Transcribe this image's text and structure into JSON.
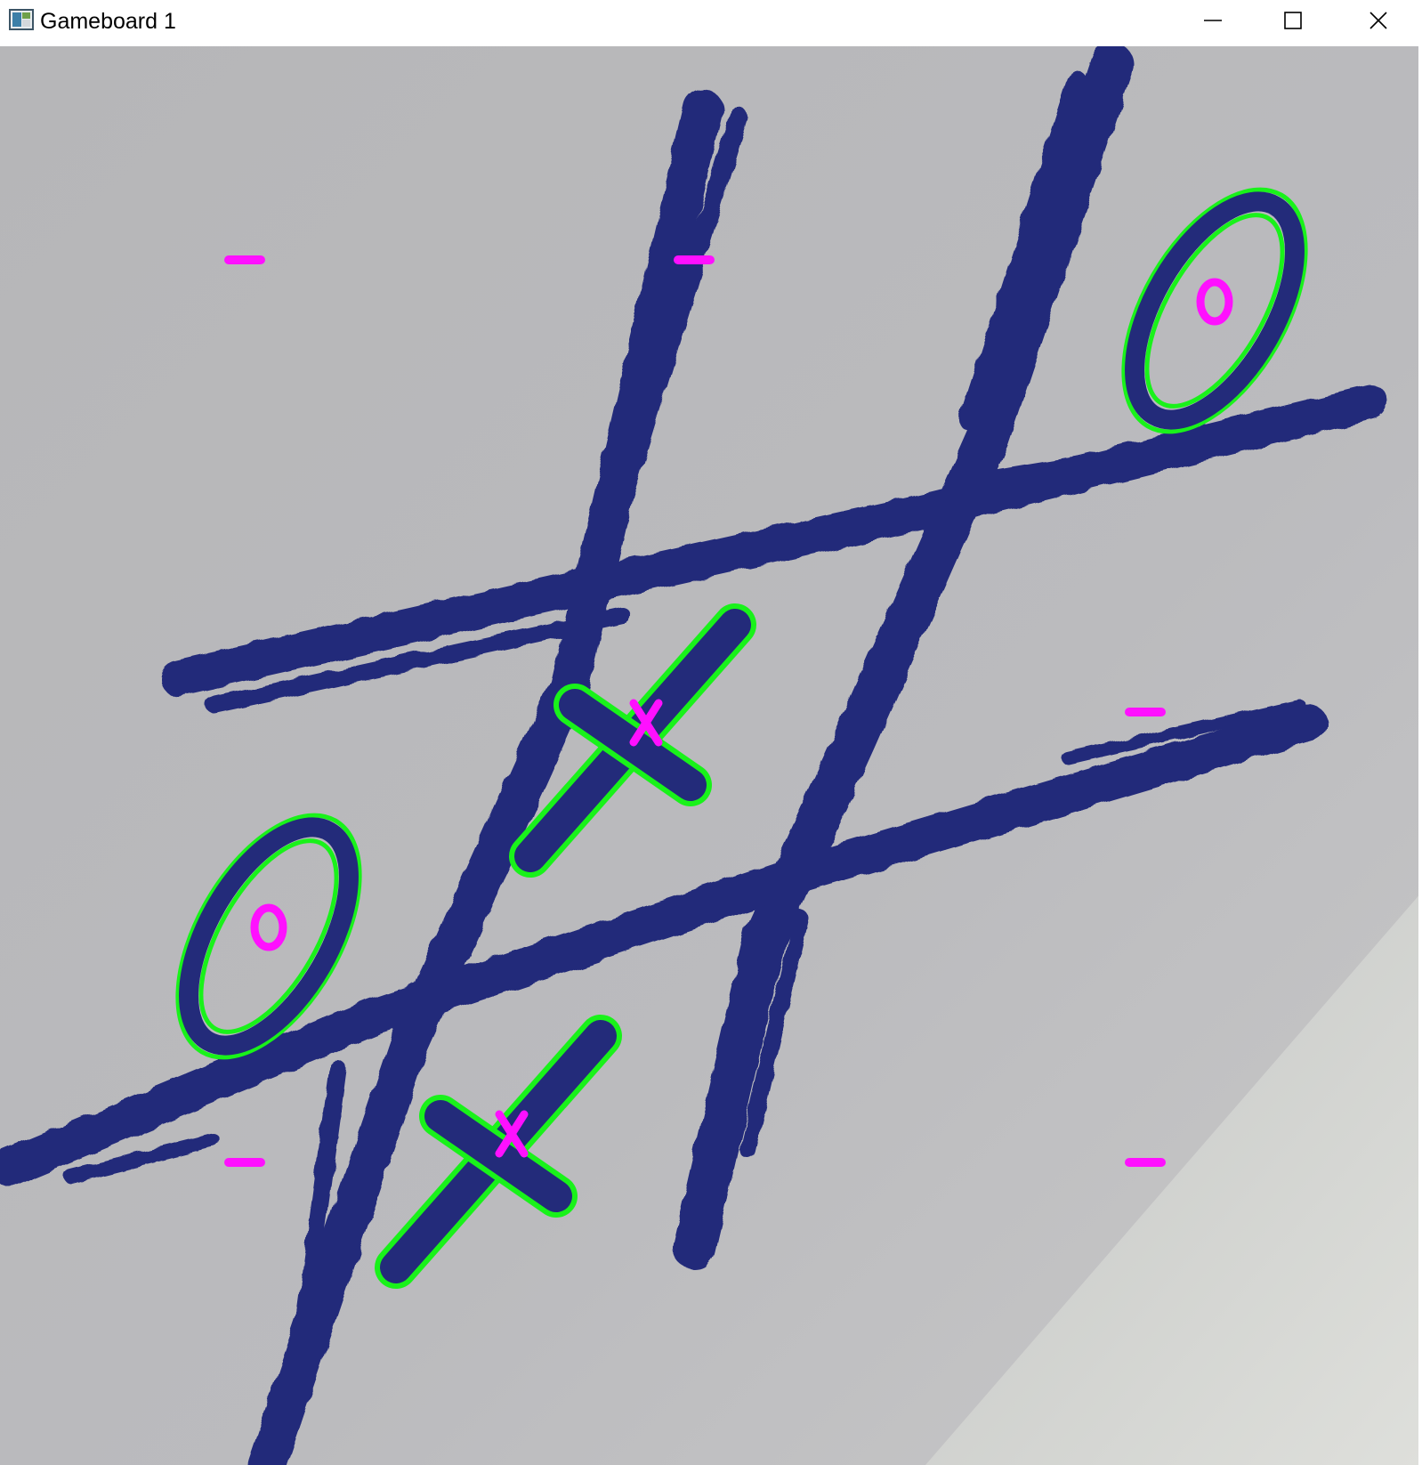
{
  "window": {
    "title": "Gameboard 1",
    "icon": "opencv-window-icon",
    "controls": {
      "minimize_icon": "minimize-icon",
      "maximize_icon": "maximize-icon",
      "close_icon": "close-icon"
    }
  },
  "board": {
    "rows": 3,
    "cols": 3,
    "cells": [
      [
        "-",
        "-",
        "O"
      ],
      [
        "O",
        "X",
        "-"
      ],
      [
        "-",
        "X",
        "-"
      ]
    ]
  },
  "colors": {
    "paper": "#b9b9bd",
    "ink": "#232b7a",
    "contour": "#19f21a",
    "marker": "#ff10ff",
    "titlebar": "#ffffff"
  }
}
